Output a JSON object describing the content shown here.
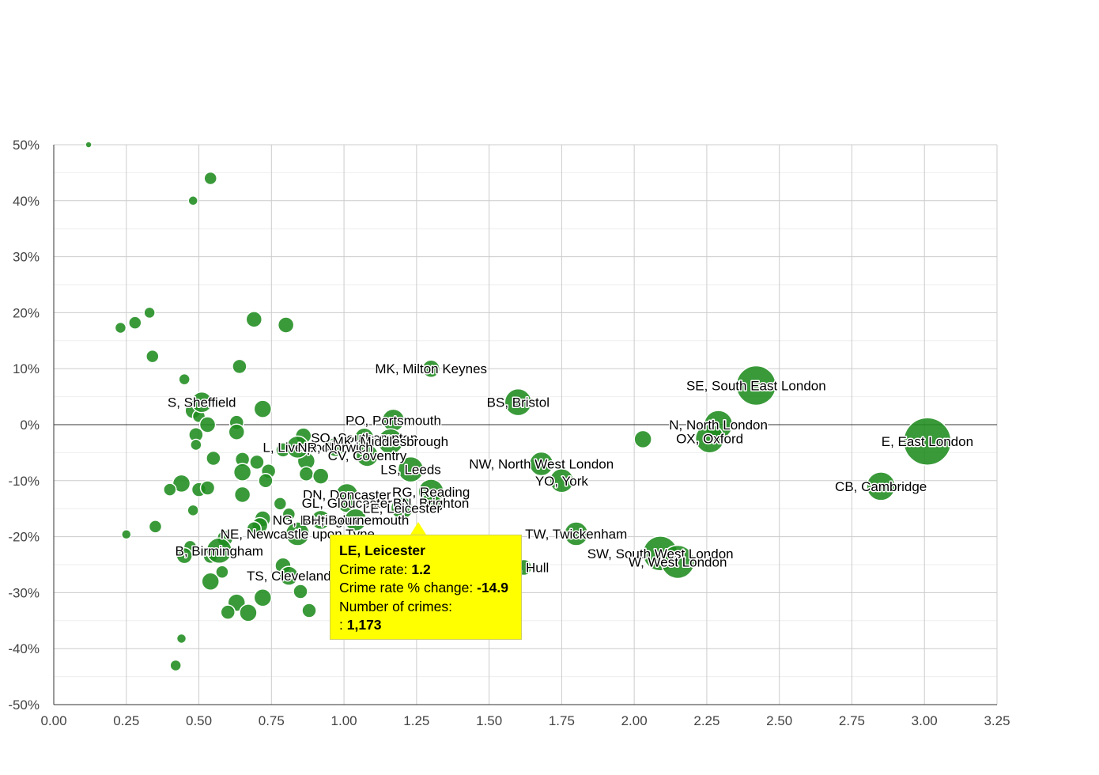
{
  "chart_data": {
    "type": "bubble",
    "title": "",
    "xlabel": "",
    "ylabel": "",
    "xlim": [
      0,
      3.25
    ],
    "ylim": [
      -50,
      50
    ],
    "x_ticks": [
      "0.00",
      "0.25",
      "0.50",
      "0.75",
      "1.00",
      "1.25",
      "1.50",
      "1.75",
      "2.00",
      "2.25",
      "2.50",
      "2.75",
      "3.00",
      "3.25"
    ],
    "y_ticks": [
      "50%",
      "40%",
      "30%",
      "20%",
      "10%",
      "0%",
      "-10%",
      "-20%",
      "-30%",
      "-40%",
      "-50%"
    ],
    "bubble_color": "#1f8c1f",
    "labeled_points": [
      {
        "label": "MK, Milton Keynes",
        "x": 1.3,
        "y": 10,
        "r": 11
      },
      {
        "label": "BS, Bristol",
        "x": 1.6,
        "y": 4,
        "r": 17
      },
      {
        "label": "S, Sheffield",
        "x": 0.51,
        "y": 4,
        "r": 13
      },
      {
        "label": "PO, Portsmouth",
        "x": 1.17,
        "y": 0.8,
        "r": 14
      },
      {
        "label": "SO, Southampton",
        "x": 1.07,
        "y": -2.3,
        "r": 12
      },
      {
        "label": "MK, Middlesbrough",
        "x": 1.16,
        "y": -3,
        "r": 16
      },
      {
        "label": "L, Liverpool",
        "x": 0.84,
        "y": -4,
        "r": 14
      },
      {
        "label": "NR, Norwich",
        "x": 0.97,
        "y": -4,
        "r": 12
      },
      {
        "label": "CV, Coventry",
        "x": 1.08,
        "y": -5.5,
        "r": 14
      },
      {
        "label": "LS, Leeds",
        "x": 1.23,
        "y": -8,
        "r": 16
      },
      {
        "label": "DN, Doncaster",
        "x": 1.01,
        "y": -12.5,
        "r": 14
      },
      {
        "label": "RG, Reading",
        "x": 1.3,
        "y": -12,
        "r": 16
      },
      {
        "label": "GL, Gloucester",
        "x": 1.01,
        "y": -14,
        "r": 12
      },
      {
        "label": "BN, Brighton",
        "x": 1.3,
        "y": -14,
        "r": 13
      },
      {
        "label": "LE, Leicester",
        "x": 1.2,
        "y": -14.9,
        "r": 14
      },
      {
        "label": "NG, Nottingham",
        "x": 0.92,
        "y": -17,
        "r": 12
      },
      {
        "label": "BH, Bournemouth",
        "x": 1.04,
        "y": -17,
        "r": 14
      },
      {
        "label": "NE, Newcastle upon Tyne",
        "x": 0.84,
        "y": -19.5,
        "r": 15
      },
      {
        "label": "B, Birmingham",
        "x": 0.57,
        "y": -22.5,
        "r": 16
      },
      {
        "label": "TS, Cleveland",
        "x": 0.81,
        "y": -27,
        "r": 12
      },
      {
        "label": "HU, Hull",
        "x": 1.62,
        "y": -25.5,
        "r": 10
      },
      {
        "label": "NW, North West London",
        "x": 1.68,
        "y": -7,
        "r": 15
      },
      {
        "label": "YO, York",
        "x": 1.75,
        "y": -10,
        "r": 15
      },
      {
        "label": "TW, Twickenham",
        "x": 1.8,
        "y": -19.5,
        "r": 15
      },
      {
        "label": "SW, South West London",
        "x": 2.09,
        "y": -23,
        "r": 22
      },
      {
        "label": "W, West London",
        "x": 2.15,
        "y": -24.5,
        "r": 21
      },
      {
        "label": "SE, South East London",
        "x": 2.42,
        "y": 7,
        "r": 25
      },
      {
        "label": "N, North London",
        "x": 2.29,
        "y": 0,
        "r": 18
      },
      {
        "label": "OX, Oxford",
        "x": 2.26,
        "y": -2.5,
        "r": 18
      },
      {
        "label": "E, East London",
        "x": 3.01,
        "y": -3,
        "r": 30
      },
      {
        "label": "CB, Cambridge",
        "x": 2.85,
        "y": -11,
        "r": 18
      }
    ],
    "other_points": [
      {
        "x": 0.12,
        "y": 50,
        "r": 4
      },
      {
        "x": 0.54,
        "y": 44,
        "r": 8
      },
      {
        "x": 0.48,
        "y": 40,
        "r": 6
      },
      {
        "x": 0.23,
        "y": 17.3,
        "r": 7
      },
      {
        "x": 0.28,
        "y": 18.2,
        "r": 8
      },
      {
        "x": 0.33,
        "y": 20,
        "r": 7
      },
      {
        "x": 0.69,
        "y": 18.8,
        "r": 10
      },
      {
        "x": 0.8,
        "y": 17.8,
        "r": 10
      },
      {
        "x": 0.34,
        "y": 12.2,
        "r": 8
      },
      {
        "x": 0.45,
        "y": 8.1,
        "r": 7
      },
      {
        "x": 0.64,
        "y": 10.4,
        "r": 9
      },
      {
        "x": 0.72,
        "y": 2.8,
        "r": 11
      },
      {
        "x": 0.48,
        "y": 2.5,
        "r": 10
      },
      {
        "x": 0.5,
        "y": 1.5,
        "r": 8
      },
      {
        "x": 0.53,
        "y": 0,
        "r": 10
      },
      {
        "x": 0.63,
        "y": 0.4,
        "r": 9
      },
      {
        "x": 0.63,
        "y": -1.3,
        "r": 10
      },
      {
        "x": 0.49,
        "y": -1.8,
        "r": 9
      },
      {
        "x": 0.49,
        "y": -3.6,
        "r": 7
      },
      {
        "x": 0.55,
        "y": -6,
        "r": 9
      },
      {
        "x": 0.65,
        "y": -6.2,
        "r": 9
      },
      {
        "x": 0.7,
        "y": -6.7,
        "r": 9
      },
      {
        "x": 0.86,
        "y": -2,
        "r": 10
      },
      {
        "x": 0.79,
        "y": -4.5,
        "r": 9
      },
      {
        "x": 0.87,
        "y": -6.5,
        "r": 11
      },
      {
        "x": 0.74,
        "y": -8.3,
        "r": 9
      },
      {
        "x": 0.65,
        "y": -8.5,
        "r": 11
      },
      {
        "x": 0.87,
        "y": -8.8,
        "r": 9
      },
      {
        "x": 0.92,
        "y": -9.2,
        "r": 10
      },
      {
        "x": 0.73,
        "y": -10,
        "r": 9
      },
      {
        "x": 0.44,
        "y": -10.5,
        "r": 11
      },
      {
        "x": 0.4,
        "y": -11.6,
        "r": 8
      },
      {
        "x": 0.5,
        "y": -11.6,
        "r": 9
      },
      {
        "x": 0.53,
        "y": -11.3,
        "r": 9
      },
      {
        "x": 0.65,
        "y": -12.5,
        "r": 10
      },
      {
        "x": 0.78,
        "y": -14.1,
        "r": 8
      },
      {
        "x": 0.48,
        "y": -15.3,
        "r": 7
      },
      {
        "x": 0.81,
        "y": -16,
        "r": 8
      },
      {
        "x": 0.72,
        "y": -16.8,
        "r": 10
      },
      {
        "x": 0.71,
        "y": -18,
        "r": 10
      },
      {
        "x": 0.69,
        "y": -18.6,
        "r": 9
      },
      {
        "x": 0.35,
        "y": -18.2,
        "r": 8
      },
      {
        "x": 0.25,
        "y": -19.6,
        "r": 6
      },
      {
        "x": 0.59,
        "y": -20.3,
        "r": 10
      },
      {
        "x": 0.47,
        "y": -21.8,
        "r": 8
      },
      {
        "x": 0.45,
        "y": -23.4,
        "r": 10
      },
      {
        "x": 0.54,
        "y": -23.5,
        "r": 9
      },
      {
        "x": 0.58,
        "y": -26.3,
        "r": 8
      },
      {
        "x": 0.79,
        "y": -25.2,
        "r": 10
      },
      {
        "x": 0.54,
        "y": -28,
        "r": 11
      },
      {
        "x": 0.85,
        "y": -29.8,
        "r": 9
      },
      {
        "x": 0.72,
        "y": -30.9,
        "r": 11
      },
      {
        "x": 0.63,
        "y": -31.8,
        "r": 11
      },
      {
        "x": 0.6,
        "y": -33.5,
        "r": 9
      },
      {
        "x": 0.67,
        "y": -33.6,
        "r": 11
      },
      {
        "x": 0.88,
        "y": -33.2,
        "r": 9
      },
      {
        "x": 0.44,
        "y": -38.2,
        "r": 6
      },
      {
        "x": 0.42,
        "y": -43,
        "r": 7
      },
      {
        "x": 2.03,
        "y": -2.6,
        "r": 11
      }
    ],
    "tooltip": {
      "title": "LE, Leicester",
      "rate_label": "Crime rate:",
      "rate_value": "1.2",
      "change_label": "Crime rate % change:",
      "change_value": "-14.9",
      "count_label": "Number of crimes:",
      "count_prefix": ":",
      "count_value": "1,173"
    }
  }
}
